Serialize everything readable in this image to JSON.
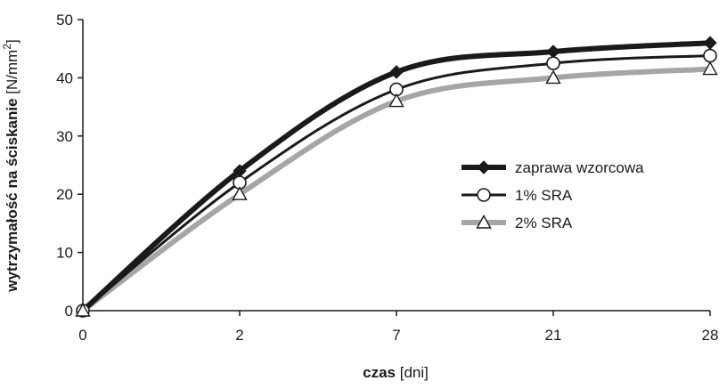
{
  "chart_data": {
    "type": "line",
    "categories": [
      "0",
      "2",
      "7",
      "21",
      "28"
    ],
    "ylim": [
      0,
      50
    ],
    "yticks": [
      "0",
      "10",
      "20",
      "30",
      "40",
      "50"
    ],
    "xlabel": {
      "bold": "czas",
      "rest": " [dni]"
    },
    "ylabel": {
      "bold": "wytrzymałość na ściskanie",
      "rest": " [N/mm",
      "sup": "2",
      "close": "]"
    },
    "grid": false,
    "legend_position": "right",
    "series": [
      {
        "name": "zaprawa wzorcowa",
        "values": [
          0,
          24,
          41,
          44.5,
          46
        ],
        "color": "#1a1a1a",
        "marker": "diamond",
        "marker_fill": "#1a1a1a"
      },
      {
        "name": "1% SRA",
        "values": [
          0,
          22,
          38,
          42.5,
          43.8
        ],
        "color": "#1a1a1a",
        "marker": "circle",
        "marker_fill": "#ffffff"
      },
      {
        "name": "2% SRA",
        "values": [
          0,
          20,
          36,
          40,
          41.5
        ],
        "color": "#a6a6a6",
        "marker": "triangle",
        "marker_fill": "#ffffff"
      }
    ]
  }
}
